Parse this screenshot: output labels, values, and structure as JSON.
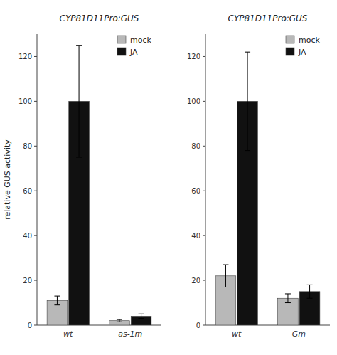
{
  "chart_data": [
    {
      "type": "bar",
      "title": "CYP81D11Pro:GUS",
      "categories": [
        "wt",
        "as-1m"
      ],
      "series": [
        {
          "name": "mock",
          "color": "#b8b8b8",
          "values": [
            11,
            2
          ],
          "errors": [
            2,
            0.5
          ]
        },
        {
          "name": "JA",
          "color": "#111111",
          "values": [
            100,
            4
          ],
          "errors": [
            25,
            1
          ]
        }
      ],
      "ylim": [
        0,
        130
      ],
      "yticks": [
        0,
        20,
        40,
        60,
        80,
        100,
        120
      ],
      "y_label": "relative GUS activity",
      "legend": "upper right",
      "grid": false
    },
    {
      "type": "bar",
      "title": "CYP81D11Pro:GUS",
      "categories": [
        "wt",
        "Gm"
      ],
      "series": [
        {
          "name": "mock",
          "color": "#b8b8b8",
          "values": [
            22,
            12
          ],
          "errors": [
            5,
            2
          ]
        },
        {
          "name": "JA",
          "color": "#111111",
          "values": [
            100,
            15
          ],
          "errors": [
            22,
            3
          ]
        }
      ],
      "ylim": [
        0,
        130
      ],
      "yticks": [
        0,
        20,
        40,
        60,
        80,
        100,
        120
      ],
      "legend": "upper right",
      "grid": false
    }
  ]
}
